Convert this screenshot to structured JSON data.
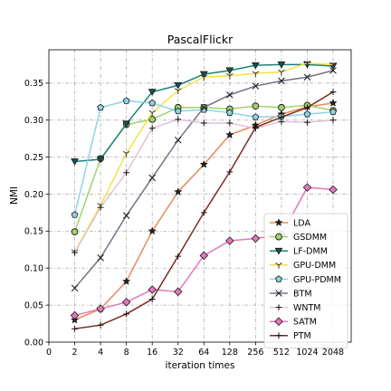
{
  "chart_data": {
    "type": "line",
    "title": "PascalFlickr",
    "xlabel": "iteration times",
    "ylabel": "NMI",
    "x_ticks": [
      "0",
      "2",
      "4",
      "8",
      "16",
      "32",
      "64",
      "128",
      "256",
      "512",
      "1024",
      "2048"
    ],
    "y_ticks": [
      "0.00",
      "0.05",
      "0.10",
      "0.15",
      "0.20",
      "0.25",
      "0.30",
      "0.35"
    ],
    "categories": [
      "2",
      "4",
      "8",
      "16",
      "32",
      "64",
      "128",
      "256",
      "512",
      "1024",
      "2048"
    ],
    "ylim": [
      0,
      0.395
    ],
    "grid": true,
    "legend_position": "lower right",
    "series": [
      {
        "name": "LDA",
        "color": "#e8895a",
        "marker": "star",
        "values": [
          0.03,
          0.045,
          0.082,
          0.15,
          0.203,
          0.24,
          0.28,
          0.293,
          0.308,
          0.318,
          0.323
        ]
      },
      {
        "name": "GSDMM",
        "color": "#9ed46a",
        "marker": "circle",
        "values": [
          0.149,
          0.248,
          0.294,
          0.301,
          0.317,
          0.317,
          0.315,
          0.319,
          0.317,
          0.32,
          0.313
        ]
      },
      {
        "name": "LF-DMM",
        "color": "#1c7f7a",
        "marker": "triangle-down",
        "values": [
          0.244,
          0.247,
          0.295,
          0.338,
          0.347,
          0.362,
          0.367,
          0.374,
          0.375,
          0.375,
          0.373
        ]
      },
      {
        "name": "GPU-DMM",
        "color": "#f5e142",
        "marker": "tri-down",
        "values": [
          0.122,
          0.185,
          0.255,
          0.31,
          0.34,
          0.358,
          0.36,
          0.363,
          0.365,
          0.377,
          0.375
        ]
      },
      {
        "name": "GPU-PDMM",
        "color": "#8ed3e6",
        "marker": "pentagon",
        "values": [
          0.172,
          0.317,
          0.326,
          0.323,
          0.312,
          0.314,
          0.31,
          0.304,
          0.305,
          0.308,
          0.311
        ]
      },
      {
        "name": "BTM",
        "color": "#6e7585",
        "marker": "x",
        "values": [
          0.073,
          0.114,
          0.171,
          0.222,
          0.273,
          0.317,
          0.334,
          0.346,
          0.353,
          0.358,
          0.367
        ]
      },
      {
        "name": "WNTM",
        "color": "#e0c1d8",
        "marker": "plus",
        "values": [
          0.121,
          0.182,
          0.229,
          0.289,
          0.301,
          0.296,
          0.296,
          0.289,
          0.298,
          0.297,
          0.3
        ]
      },
      {
        "name": "SATM",
        "color": "#e478b8",
        "marker": "diamond",
        "values": [
          0.036,
          0.045,
          0.054,
          0.071,
          0.068,
          0.117,
          0.137,
          0.14,
          0.145,
          0.209,
          0.206
        ]
      },
      {
        "name": "PTM",
        "color": "#7d2b1f",
        "marker": "plus",
        "values": [
          0.018,
          0.023,
          0.038,
          0.058,
          0.116,
          0.175,
          0.23,
          0.29,
          0.304,
          0.317,
          0.338
        ]
      }
    ]
  }
}
